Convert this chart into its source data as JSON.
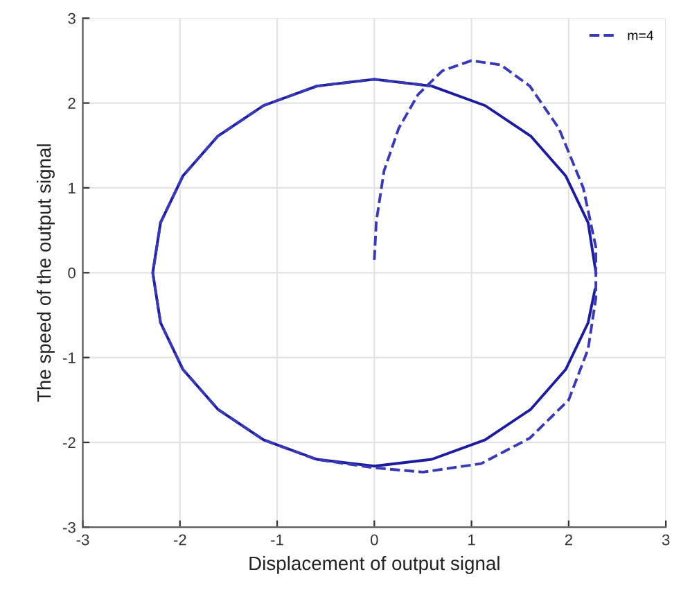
{
  "chart_data": {
    "type": "line",
    "xlabel": "Displacement of output signal",
    "ylabel": "The speed of the output signal",
    "xlim": [
      -3,
      3
    ],
    "ylim": [
      -3,
      3
    ],
    "xticks": [
      -3,
      -2,
      -1,
      0,
      1,
      2,
      3
    ],
    "yticks": [
      -3,
      -2,
      -1,
      0,
      1,
      2,
      3
    ],
    "grid": true,
    "legend": "top right",
    "series": [
      {
        "color": "#1c1c9c",
        "line_style": "solid",
        "x": [
          2.28,
          2.2,
          1.97,
          1.61,
          1.14,
          0.59,
          0,
          -0.59,
          -1.14,
          -1.61,
          -1.97,
          -2.2,
          -2.28,
          -2.2,
          -1.97,
          -1.61,
          -1.14,
          -0.59,
          0,
          0.59,
          1.14,
          1.61,
          1.97,
          2.2,
          2.27
        ],
        "values": [
          0,
          0.59,
          1.14,
          1.61,
          1.97,
          2.2,
          2.28,
          2.2,
          1.97,
          1.61,
          1.14,
          0.59,
          0,
          -0.59,
          -1.14,
          -1.61,
          -1.97,
          -2.2,
          -2.28,
          -2.2,
          -1.97,
          -1.61,
          -1.14,
          -0.59,
          -0.2
        ]
      },
      {
        "name": "m=4",
        "color": "#3a3ab4",
        "line_style": "dashed",
        "x": [
          0,
          0.02,
          0.1,
          0.25,
          0.45,
          0.7,
          1.0,
          1.3,
          1.6,
          1.9,
          2.15,
          2.28,
          2.28,
          2.2,
          2.0,
          1.6,
          1.1,
          0.5,
          0,
          -0.6,
          -1.14,
          -1.61,
          -1.97,
          -2.2,
          -2.28,
          -2.2,
          -1.97,
          -1.61,
          -1.14,
          -0.59,
          0,
          0.59
        ],
        "values": [
          0.15,
          0.6,
          1.2,
          1.7,
          2.1,
          2.38,
          2.5,
          2.45,
          2.2,
          1.7,
          1.0,
          0.3,
          -0.3,
          -0.9,
          -1.5,
          -1.95,
          -2.25,
          -2.35,
          -2.3,
          -2.2,
          -1.97,
          -1.61,
          -1.14,
          -0.59,
          0,
          0.59,
          1.14,
          1.61,
          1.97,
          2.2,
          2.28,
          2.2
        ]
      }
    ]
  }
}
